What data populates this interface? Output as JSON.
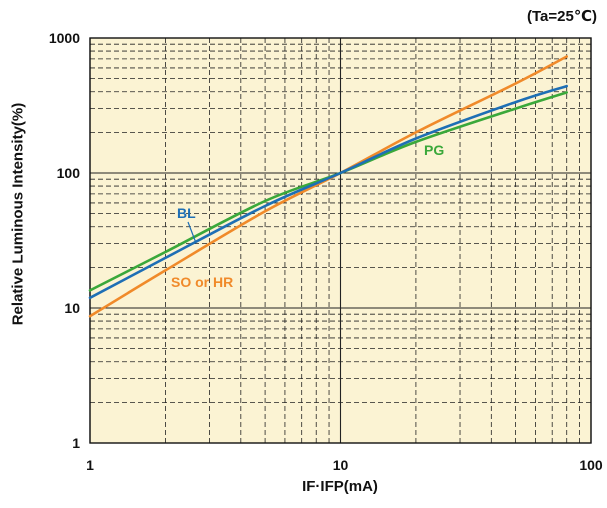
{
  "chart_data": {
    "type": "line",
    "title": "",
    "condition": "(Ta=25℃)",
    "xlabel": "IF·IFP(mA)",
    "ylabel": "Relative Luminous Intensity(%)",
    "xscale": "log",
    "yscale": "log",
    "xlim": [
      1,
      100
    ],
    "ylim": [
      1,
      1000
    ],
    "xticks": [
      1,
      10,
      100
    ],
    "xtick_labels": [
      "1",
      "10",
      "100"
    ],
    "yticks": [
      1,
      10,
      100,
      1000
    ],
    "ytick_labels": [
      "1",
      "10",
      "100",
      "1000"
    ],
    "grid": true,
    "background": "#fbf3d3",
    "series": [
      {
        "name": "SO or HR",
        "color": "#f08a2a",
        "x": [
          1,
          2,
          5,
          10,
          20,
          50,
          80
        ],
        "y": [
          8.7,
          19,
          52,
          100,
          200,
          460,
          730
        ]
      },
      {
        "name": "BL",
        "color": "#1e6fb5",
        "x": [
          1,
          2,
          5,
          10,
          20,
          50,
          80
        ],
        "y": [
          11.9,
          23.5,
          57,
          100,
          180,
          335,
          440
        ]
      },
      {
        "name": "PG",
        "color": "#3aa83a",
        "x": [
          1,
          2,
          5,
          10,
          20,
          50,
          80
        ],
        "y": [
          13.5,
          26,
          62,
          100,
          170,
          300,
          395
        ]
      }
    ]
  }
}
